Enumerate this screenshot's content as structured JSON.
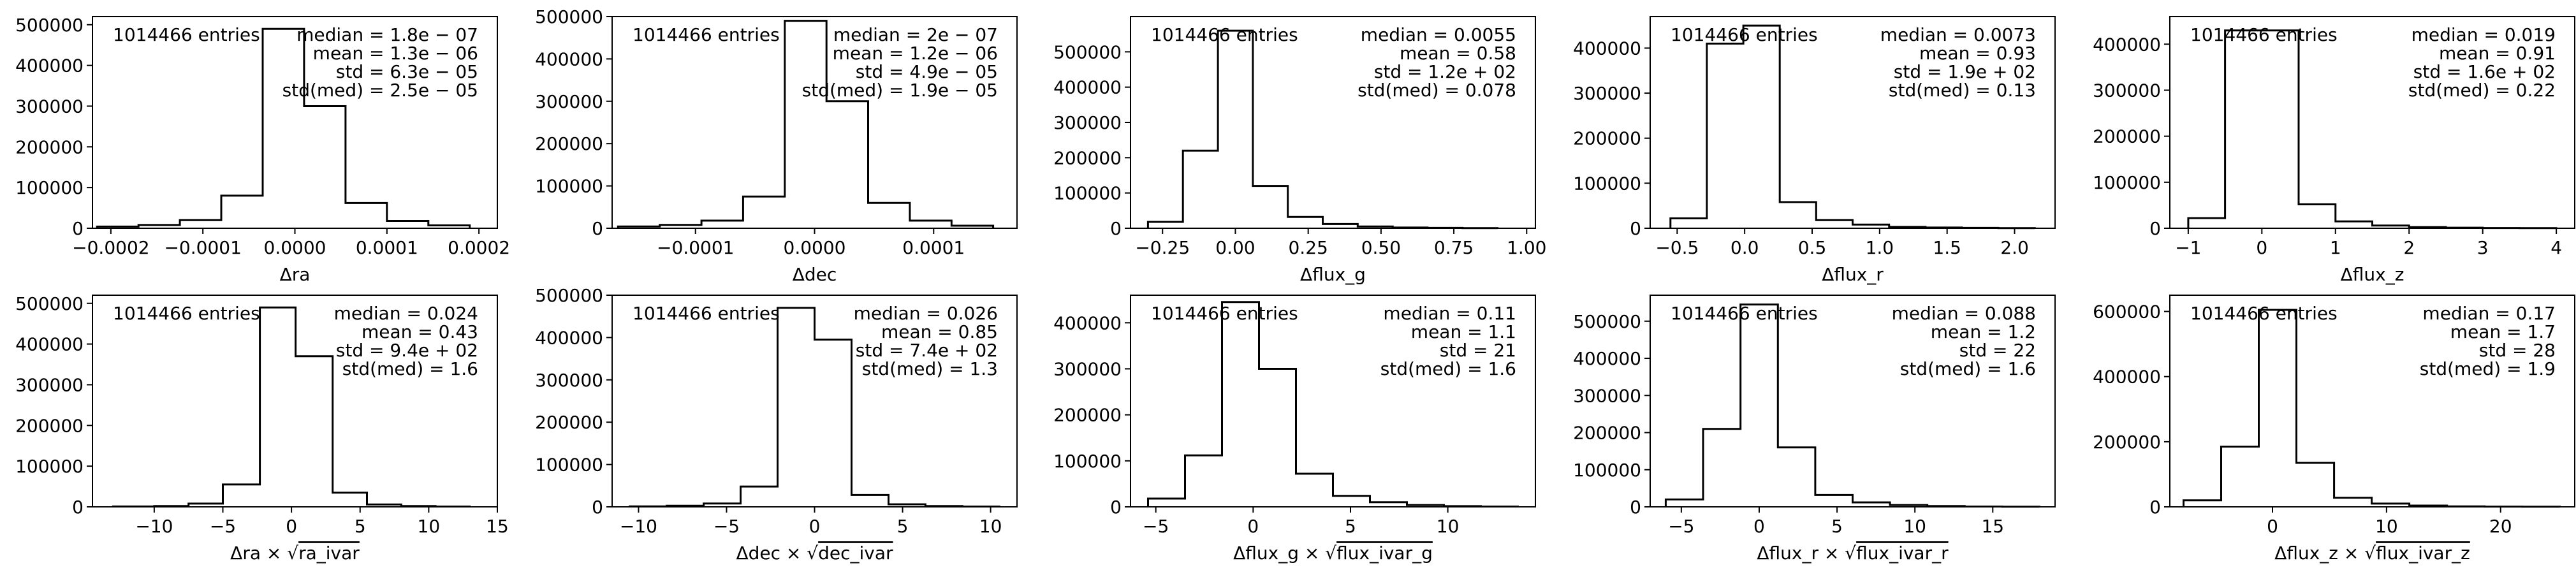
{
  "figure": {
    "background": "#ffffff",
    "line_color": "#000000"
  },
  "chart_data": [
    {
      "type": "histogram",
      "xlabel": "Δra",
      "xlim": [
        -0.00022,
        0.00022
      ],
      "ylim": [
        0,
        520000
      ],
      "xticks": [
        -0.0002,
        -0.0001,
        0.0,
        0.0001,
        0.0002
      ],
      "xtick_labels": [
        "−0.0002",
        "−0.0001",
        "0.0000",
        "0.0001",
        "0.0002"
      ],
      "yticks": [
        0,
        100000,
        200000,
        300000,
        400000,
        500000
      ],
      "ytick_labels": [
        "0",
        "100000",
        "200000",
        "300000",
        "400000",
        "500000"
      ],
      "bin_edges": [
        -0.000215,
        -0.00017,
        -0.000125,
        -8e-05,
        -3.5e-05,
        1e-05,
        5.5e-05,
        0.0001,
        0.000145,
        0.00019
      ],
      "counts": [
        4000,
        8000,
        20000,
        80000,
        490000,
        300000,
        62000,
        18000,
        7000
      ],
      "entries_text": "1014466 entries",
      "stats_text": [
        "median = 1.8e − 07",
        "mean = 1.3e − 06",
        "std = 6.3e − 05",
        "std(med) = 2.5e − 05"
      ]
    },
    {
      "type": "histogram",
      "xlabel": "Δdec",
      "xlim": [
        -0.00017,
        0.00017
      ],
      "ylim": [
        0,
        500000
      ],
      "xticks": [
        -0.0001,
        0.0,
        0.0001
      ],
      "xtick_labels": [
        "−0.0001",
        "0.0000",
        "0.0001"
      ],
      "yticks": [
        0,
        100000,
        200000,
        300000,
        400000,
        500000
      ],
      "ytick_labels": [
        "0",
        "100000",
        "200000",
        "300000",
        "400000",
        "500000"
      ],
      "bin_edges": [
        -0.000165,
        -0.00013,
        -9.5e-05,
        -6e-05,
        -2.5e-05,
        1e-05,
        4.5e-05,
        8e-05,
        0.000115,
        0.00015
      ],
      "counts": [
        4000,
        8000,
        18000,
        75000,
        490000,
        300000,
        60000,
        18000,
        6000
      ],
      "entries_text": "1014466 entries",
      "stats_text": [
        "median = 2e − 07",
        "mean = 1.2e − 06",
        "std = 4.9e − 05",
        "std(med) = 1.9e − 05"
      ]
    },
    {
      "type": "histogram",
      "xlabel": "Δflux_g",
      "xlim": [
        -0.36,
        1.03
      ],
      "ylim": [
        0,
        600000
      ],
      "xticks": [
        -0.25,
        0.0,
        0.25,
        0.5,
        0.75,
        1.0
      ],
      "xtick_labels": [
        "−0.25",
        "0.00",
        "0.25",
        "0.50",
        "0.75",
        "1.00"
      ],
      "yticks": [
        0,
        100000,
        200000,
        300000,
        400000,
        500000
      ],
      "ytick_labels": [
        "0",
        "100000",
        "200000",
        "300000",
        "400000",
        "500000"
      ],
      "bin_edges": [
        -0.3,
        -0.18,
        -0.06,
        0.06,
        0.18,
        0.3,
        0.42,
        0.54,
        0.66,
        0.78,
        0.9
      ],
      "counts": [
        18000,
        220000,
        560000,
        120000,
        32000,
        12000,
        5000,
        2000,
        1000,
        500
      ],
      "entries_text": "1014466 entries",
      "stats_text": [
        "median = 0.0055",
        "mean = 0.58",
        "std = 1.2e + 02",
        "std(med) = 0.078"
      ]
    },
    {
      "type": "histogram",
      "xlabel": "Δflux_r",
      "xlim": [
        -0.7,
        2.3
      ],
      "ylim": [
        0,
        470000
      ],
      "xticks": [
        -0.5,
        0.0,
        0.5,
        1.0,
        1.5,
        2.0
      ],
      "xtick_labels": [
        "−0.5",
        "0.0",
        "0.5",
        "1.0",
        "1.5",
        "2.0"
      ],
      "yticks": [
        0,
        100000,
        200000,
        300000,
        400000
      ],
      "ytick_labels": [
        "0",
        "100000",
        "200000",
        "300000",
        "400000"
      ],
      "bin_edges": [
        -0.55,
        -0.28,
        -0.01,
        0.26,
        0.53,
        0.8,
        1.07,
        1.34,
        1.61,
        1.88,
        2.15
      ],
      "counts": [
        22000,
        410000,
        450000,
        58000,
        18000,
        8000,
        3000,
        1500,
        800,
        400
      ],
      "entries_text": "1014466 entries",
      "stats_text": [
        "median = 0.0073",
        "mean = 0.93",
        "std = 1.9e + 02",
        "std(med) = 0.13"
      ]
    },
    {
      "type": "histogram",
      "xlabel": "Δflux_z",
      "xlim": [
        -1.25,
        4.25
      ],
      "ylim": [
        0,
        460000
      ],
      "xticks": [
        -1,
        0,
        1,
        2,
        3,
        4
      ],
      "xtick_labels": [
        "−1",
        "0",
        "1",
        "2",
        "3",
        "4"
      ],
      "yticks": [
        0,
        100000,
        200000,
        300000,
        400000
      ],
      "ytick_labels": [
        "0",
        "100000",
        "200000",
        "300000",
        "400000"
      ],
      "bin_edges": [
        -1.0,
        -0.5,
        0.0,
        0.5,
        1.0,
        1.5,
        2.0,
        2.5,
        3.0,
        3.5,
        4.0
      ],
      "counts": [
        22000,
        430000,
        430000,
        52000,
        15000,
        6000,
        2500,
        1200,
        600,
        300
      ],
      "entries_text": "1014466 entries",
      "stats_text": [
        "median = 0.019",
        "mean = 0.91",
        "std = 1.6e + 02",
        "std(med) = 0.22"
      ]
    },
    {
      "type": "histogram",
      "xlabel": "Δra × √ra_ivar",
      "xlabel_parts": [
        "Δra × ",
        "ra_ivar"
      ],
      "xlim": [
        -14.5,
        15
      ],
      "ylim": [
        0,
        520000
      ],
      "xticks": [
        -10,
        -5,
        0,
        5,
        10,
        15
      ],
      "xtick_labels": [
        "−10",
        "−5",
        "0",
        "5",
        "10",
        "15"
      ],
      "yticks": [
        0,
        100000,
        200000,
        300000,
        400000,
        500000
      ],
      "ytick_labels": [
        "0",
        "100000",
        "200000",
        "300000",
        "400000",
        "500000"
      ],
      "bin_edges": [
        -13.0,
        -10.0,
        -7.5,
        -5.0,
        -2.3,
        0.3,
        3.0,
        5.5,
        8.0,
        10.5,
        13.0
      ],
      "counts": [
        1000,
        2000,
        8000,
        55000,
        490000,
        370000,
        35000,
        6000,
        2000,
        800
      ],
      "entries_text": "1014466 entries",
      "stats_text": [
        "median = 0.024",
        "mean = 0.43",
        "std = 9.4e + 02",
        "std(med) = 1.6"
      ]
    },
    {
      "type": "histogram",
      "xlabel": "Δdec × √dec_ivar",
      "xlabel_parts": [
        "Δdec × ",
        "dec_ivar"
      ],
      "xlim": [
        -11.5,
        11.5
      ],
      "ylim": [
        0,
        500000
      ],
      "xticks": [
        -10,
        -5,
        0,
        5,
        10
      ],
      "xtick_labels": [
        "−10",
        "−5",
        "0",
        "5",
        "10"
      ],
      "yticks": [
        0,
        100000,
        200000,
        300000,
        400000,
        500000
      ],
      "ytick_labels": [
        "0",
        "100000",
        "200000",
        "300000",
        "400000",
        "500000"
      ],
      "bin_edges": [
        -10.5,
        -8.4,
        -6.3,
        -4.2,
        -2.1,
        0.0,
        2.1,
        4.2,
        6.3,
        8.4,
        10.5
      ],
      "counts": [
        1000,
        2500,
        8000,
        48000,
        470000,
        395000,
        28000,
        6000,
        2000,
        800
      ],
      "entries_text": "1014466 entries",
      "stats_text": [
        "median = 0.026",
        "mean = 0.85",
        "std = 7.4e + 02",
        "std(med) = 1.3"
      ]
    },
    {
      "type": "histogram",
      "xlabel": "Δflux_g × √flux_ivar_g",
      "xlabel_parts": [
        "Δflux_g × ",
        "flux_ivar_g"
      ],
      "xlim": [
        -6.3,
        14.5
      ],
      "ylim": [
        0,
        460000
      ],
      "xticks": [
        -5,
        0,
        5,
        10
      ],
      "xtick_labels": [
        "−5",
        "0",
        "5",
        "10"
      ],
      "yticks": [
        0,
        100000,
        200000,
        300000,
        400000
      ],
      "ytick_labels": [
        "0",
        "100000",
        "200000",
        "300000",
        "400000"
      ],
      "bin_edges": [
        -5.4,
        -3.5,
        -1.6,
        0.3,
        2.2,
        4.1,
        6.0,
        7.9,
        9.8,
        11.7,
        13.6
      ],
      "counts": [
        18000,
        112000,
        445000,
        300000,
        72000,
        24000,
        10000,
        4000,
        1500,
        700
      ],
      "entries_text": "1014466 entries",
      "stats_text": [
        "median = 0.11",
        "mean = 1.1",
        "std = 21",
        "std(med) = 1.6"
      ]
    },
    {
      "type": "histogram",
      "xlabel": "Δflux_r × √flux_ivar_r",
      "xlabel_parts": [
        "Δflux_r × ",
        "flux_ivar_r"
      ],
      "xlim": [
        -7,
        19
      ],
      "ylim": [
        0,
        570000
      ],
      "xticks": [
        -5,
        0,
        5,
        10,
        15
      ],
      "xtick_labels": [
        "−5",
        "0",
        "5",
        "10",
        "15"
      ],
      "yticks": [
        0,
        100000,
        200000,
        300000,
        400000,
        500000
      ],
      "ytick_labels": [
        "0",
        "100000",
        "200000",
        "300000",
        "400000",
        "500000"
      ],
      "bin_edges": [
        -6.0,
        -3.6,
        -1.2,
        1.2,
        3.6,
        6.0,
        8.4,
        10.8,
        13.2,
        15.6,
        18.0
      ],
      "counts": [
        20000,
        210000,
        545000,
        160000,
        32000,
        12000,
        5000,
        2000,
        900,
        400
      ],
      "entries_text": "1014466 entries",
      "stats_text": [
        "median = 0.088",
        "mean = 1.2",
        "std = 22",
        "std(med) = 1.6"
      ]
    },
    {
      "type": "histogram",
      "xlabel": "Δflux_z × √flux_ivar_z",
      "xlabel_parts": [
        "Δflux_z × ",
        "flux_ivar_z"
      ],
      "xlim": [
        -9,
        26.5
      ],
      "ylim": [
        0,
        650000
      ],
      "xticks": [
        0,
        10,
        20
      ],
      "xtick_labels": [
        "0",
        "10",
        "20"
      ],
      "yticks": [
        0,
        200000,
        400000,
        600000
      ],
      "ytick_labels": [
        "0",
        "200000",
        "400000",
        "600000"
      ],
      "bin_edges": [
        -7.8,
        -4.5,
        -1.2,
        2.1,
        5.4,
        8.7,
        12.0,
        15.3,
        18.6,
        21.9,
        25.2
      ],
      "counts": [
        20000,
        185000,
        605000,
        135000,
        28000,
        10000,
        4000,
        1500,
        700,
        300
      ],
      "entries_text": "1014466 entries",
      "stats_text": [
        "median = 0.17",
        "mean = 1.7",
        "std = 28",
        "std(med) = 1.9"
      ]
    }
  ]
}
